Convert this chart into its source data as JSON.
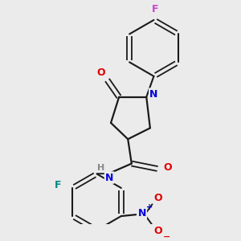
{
  "background_color": "#ebebeb",
  "bond_color": "#1a1a1a",
  "atom_colors": {
    "O": "#e00000",
    "N": "#0000dd",
    "F_top": "#cc44cc",
    "F_bot": "#008888",
    "H": "#888888"
  },
  "figsize": [
    3.0,
    3.0
  ],
  "dpi": 100
}
